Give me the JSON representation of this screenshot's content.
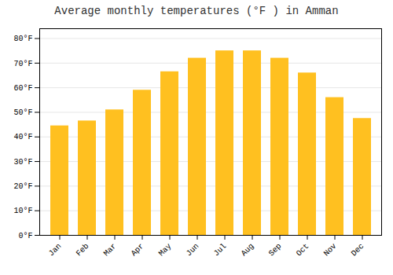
{
  "chart_data": {
    "type": "bar",
    "title": "Average monthly temperatures (°F ) in Amman",
    "categories": [
      "Jan",
      "Feb",
      "Mar",
      "Apr",
      "May",
      "Jun",
      "Jul",
      "Aug",
      "Sep",
      "Oct",
      "Nov",
      "Dec"
    ],
    "values": [
      44.5,
      46.5,
      51.0,
      59.0,
      66.5,
      72.0,
      75.0,
      75.0,
      72.0,
      66.0,
      56.0,
      47.5
    ],
    "color": "#FFC020",
    "ylim": [
      0,
      84
    ],
    "yticks": [
      {
        "value": 0,
        "label": "0°F"
      },
      {
        "value": 10,
        "label": "10°F"
      },
      {
        "value": 20,
        "label": "20°F"
      },
      {
        "value": 30,
        "label": "30°F"
      },
      {
        "value": 40,
        "label": "40°F"
      },
      {
        "value": 50,
        "label": "50°F"
      },
      {
        "value": 60,
        "label": "60°F"
      },
      {
        "value": 70,
        "label": "70°F"
      },
      {
        "value": 80,
        "label": "80°F"
      }
    ],
    "grid": true
  }
}
